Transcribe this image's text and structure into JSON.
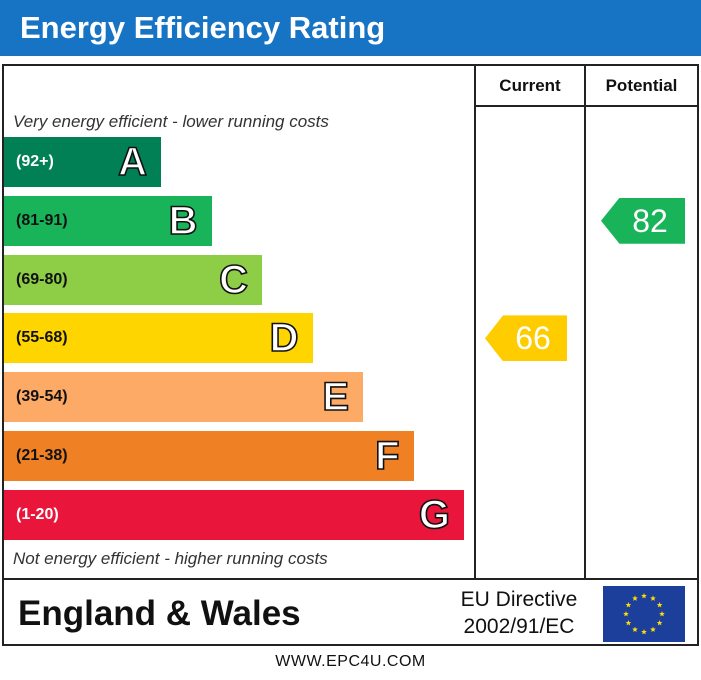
{
  "header": {
    "title": "Energy Efficiency Rating"
  },
  "columns": {
    "current": "Current",
    "potential": "Potential"
  },
  "notes": {
    "top": "Very energy efficient - lower running costs",
    "bottom": "Not energy efficient - higher running costs"
  },
  "chart_data": {
    "type": "bar",
    "title": "Energy Efficiency Rating",
    "categories": [
      "A",
      "B",
      "C",
      "D",
      "E",
      "F",
      "G"
    ],
    "bands": [
      {
        "letter": "A",
        "range": "(92+)",
        "min": 92,
        "max": 100,
        "color": "#008054"
      },
      {
        "letter": "B",
        "range": "(81-91)",
        "min": 81,
        "max": 91,
        "color": "#19b459"
      },
      {
        "letter": "C",
        "range": "(69-80)",
        "min": 69,
        "max": 80,
        "color": "#8dce46"
      },
      {
        "letter": "D",
        "range": "(55-68)",
        "min": 55,
        "max": 68,
        "color": "#ffd500"
      },
      {
        "letter": "E",
        "range": "(39-54)",
        "min": 39,
        "max": 54,
        "color": "#fcaa65"
      },
      {
        "letter": "F",
        "range": "(21-38)",
        "min": 21,
        "max": 38,
        "color": "#ef8023"
      },
      {
        "letter": "G",
        "range": "(1-20)",
        "min": 1,
        "max": 20,
        "color": "#e9153b"
      }
    ],
    "current": {
      "value": 66,
      "color": "#ffcc00"
    },
    "potential": {
      "value": 82,
      "color": "#19b459"
    }
  },
  "footer": {
    "country": "England & Wales",
    "directive_line1": "EU Directive",
    "directive_line2": "2002/91/EC",
    "url": "WWW.EPC4U.COM"
  },
  "colors": {
    "header": "#1774c4",
    "eu_flag": "#1d3f9c",
    "eu_stars": "#ffdd00"
  }
}
